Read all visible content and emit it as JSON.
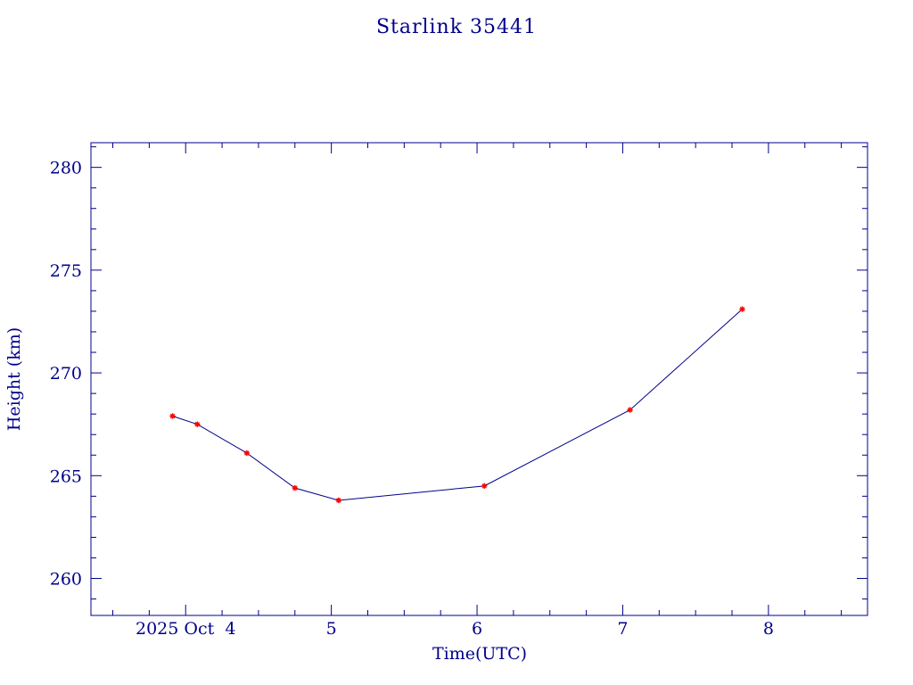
{
  "chart_data": {
    "type": "line",
    "title": "Starlink 35441",
    "xlabel": "Time(UTC)",
    "ylabel": "Height (km)",
    "x_axis": {
      "unit": "day of month (October 2025)",
      "range": [
        3.35,
        8.68
      ],
      "major_ticks": [
        4,
        5,
        6,
        7,
        8
      ],
      "minor_step": 0.25,
      "tick_labels": [
        {
          "value": 4,
          "label": "2025 Oct  4"
        },
        {
          "value": 5,
          "label": "5"
        },
        {
          "value": 6,
          "label": "6"
        },
        {
          "value": 7,
          "label": "7"
        },
        {
          "value": 8,
          "label": "8"
        }
      ]
    },
    "y_axis": {
      "range": [
        258.2,
        281.2
      ],
      "major_ticks": [
        260,
        265,
        270,
        275,
        280
      ],
      "minor_step": 1,
      "tick_labels": [
        "260",
        "265",
        "270",
        "275",
        "280"
      ]
    },
    "grid": false,
    "legend": "none",
    "series": [
      {
        "line_color": "#00008b",
        "marker_color": "#ff0000",
        "points": [
          {
            "x": 3.91,
            "y": 267.9
          },
          {
            "x": 4.08,
            "y": 267.5
          },
          {
            "x": 4.42,
            "y": 266.1
          },
          {
            "x": 4.75,
            "y": 264.4
          },
          {
            "x": 5.05,
            "y": 263.8
          },
          {
            "x": 6.05,
            "y": 264.5
          },
          {
            "x": 7.05,
            "y": 268.2
          },
          {
            "x": 7.82,
            "y": 273.1
          }
        ]
      }
    ],
    "colors": {
      "text": "#00008b",
      "axes": "#00008b",
      "line": "#00008b",
      "markers": "#ff0000",
      "background": "#ffffff"
    }
  }
}
